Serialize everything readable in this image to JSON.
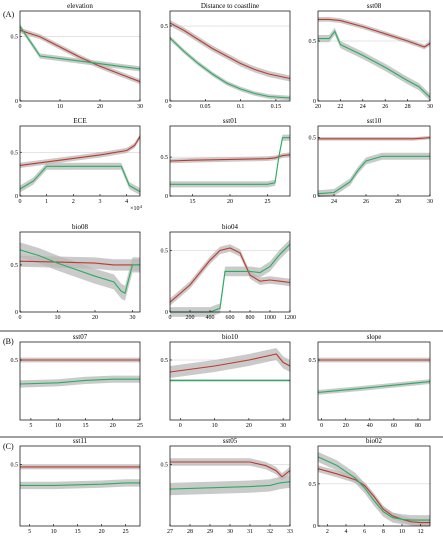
{
  "sections": [
    "(A)",
    "(B)",
    "(C)"
  ],
  "colors": {
    "red": "#c0392b",
    "green": "#27ae60",
    "band": "#b8b8b8"
  },
  "chart_data": [
    {
      "type": "line",
      "title": "elevation",
      "xlim": [
        0,
        30
      ],
      "ylim": [
        0,
        0.7
      ],
      "xticks": [
        0,
        10,
        20,
        30
      ],
      "yticks": [
        0,
        0.5
      ],
      "ytick_labels": [
        "0",
        "0.5"
      ],
      "exp": "",
      "ref": 0.5,
      "series": [
        {
          "color": "red",
          "x": [
            0,
            5,
            10,
            15,
            20,
            25,
            30
          ],
          "y": [
            0.55,
            0.5,
            0.42,
            0.34,
            0.27,
            0.21,
            0.15
          ],
          "band": 0.02
        },
        {
          "color": "green",
          "x": [
            0,
            5,
            10,
            15,
            20,
            25,
            30
          ],
          "y": [
            0.58,
            0.35,
            0.33,
            0.31,
            0.29,
            0.27,
            0.25
          ],
          "band": 0.02
        }
      ]
    },
    {
      "type": "line",
      "title": "Distance to coastline",
      "xlim": [
        0,
        0.17
      ],
      "ylim": [
        0,
        0.6
      ],
      "xticks": [
        0,
        0.05,
        0.1,
        0.15
      ],
      "yticks": [
        0,
        0.5
      ],
      "ytick_labels": [
        "0",
        "0.5"
      ],
      "exp": "",
      "ref": 0.5,
      "series": [
        {
          "color": "red",
          "x": [
            0,
            0.02,
            0.04,
            0.06,
            0.08,
            0.1,
            0.12,
            0.14,
            0.17
          ],
          "y": [
            0.52,
            0.47,
            0.41,
            0.35,
            0.3,
            0.25,
            0.21,
            0.18,
            0.15
          ],
          "band": 0.02
        },
        {
          "color": "green",
          "x": [
            0,
            0.02,
            0.04,
            0.06,
            0.08,
            0.1,
            0.12,
            0.14,
            0.17
          ],
          "y": [
            0.42,
            0.33,
            0.25,
            0.18,
            0.12,
            0.08,
            0.05,
            0.03,
            0.02
          ],
          "band": 0.015
        }
      ]
    },
    {
      "type": "line",
      "title": "sst08",
      "xlim": [
        20,
        30
      ],
      "ylim": [
        0,
        0.75
      ],
      "xticks": [
        20,
        22,
        24,
        26,
        28,
        30
      ],
      "yticks": [
        0,
        0.5
      ],
      "ytick_labels": [
        "0",
        "0.5"
      ],
      "exp": "",
      "ref": 0.5,
      "series": [
        {
          "color": "red",
          "x": [
            20,
            21,
            22,
            24,
            26,
            28,
            29.5,
            30
          ],
          "y": [
            0.68,
            0.68,
            0.67,
            0.62,
            0.56,
            0.5,
            0.45,
            0.48
          ],
          "band": 0.02
        },
        {
          "color": "green",
          "x": [
            20,
            21,
            21.5,
            22,
            24,
            26,
            28,
            29,
            30
          ],
          "y": [
            0.52,
            0.52,
            0.58,
            0.47,
            0.38,
            0.28,
            0.17,
            0.12,
            0.03
          ],
          "band": 0.03
        }
      ]
    },
    {
      "type": "line",
      "title": "ECE",
      "xlim": [
        0,
        45000
      ],
      "ylim": [
        0,
        0.8
      ],
      "xticks": [
        0,
        10000,
        20000,
        30000,
        40000
      ],
      "yticks": [
        0,
        0.5
      ],
      "ytick_labels": [
        "0",
        "0.5"
      ],
      "exp": "×10",
      "exp_power": "4",
      "ref": 0.5,
      "series": [
        {
          "color": "red",
          "x": [
            0,
            10000,
            20000,
            30000,
            40000,
            43000,
            45000
          ],
          "y": [
            0.35,
            0.39,
            0.43,
            0.47,
            0.52,
            0.58,
            0.68
          ],
          "band": 0.03
        },
        {
          "color": "green",
          "x": [
            0,
            5000,
            10000,
            20000,
            30000,
            38000,
            41000,
            45000
          ],
          "y": [
            0.08,
            0.17,
            0.34,
            0.34,
            0.34,
            0.34,
            0.12,
            0.05
          ],
          "band": 0.04
        }
      ]
    },
    {
      "type": "line",
      "title": "sst01",
      "xlim": [
        12,
        28
      ],
      "ylim": [
        0,
        0.9
      ],
      "xticks": [
        15,
        20,
        25
      ],
      "yticks": [
        0,
        0.5
      ],
      "ytick_labels": [
        "0",
        "0.5"
      ],
      "exp": "",
      "ref": 0.5,
      "series": [
        {
          "color": "red",
          "x": [
            12,
            15,
            20,
            25,
            26,
            27,
            28
          ],
          "y": [
            0.45,
            0.46,
            0.47,
            0.48,
            0.49,
            0.52,
            0.53
          ],
          "band": 0.03
        },
        {
          "color": "green",
          "x": [
            12,
            20,
            25,
            26,
            26.5,
            27,
            28
          ],
          "y": [
            0.15,
            0.15,
            0.15,
            0.17,
            0.5,
            0.75,
            0.75
          ],
          "band": 0.04
        }
      ]
    },
    {
      "type": "line",
      "title": "sst10",
      "xlim": [
        23,
        30
      ],
      "ylim": [
        0,
        0.6
      ],
      "xticks": [
        24,
        26,
        28,
        30
      ],
      "yticks": [
        0,
        0.5
      ],
      "ytick_labels": [
        "0",
        "0.5"
      ],
      "exp": "",
      "ref": 0.5,
      "series": [
        {
          "color": "red",
          "x": [
            23,
            25,
            27,
            29,
            30
          ],
          "y": [
            0.49,
            0.49,
            0.49,
            0.49,
            0.5
          ],
          "band": 0.015
        },
        {
          "color": "green",
          "x": [
            23,
            24,
            25,
            25.5,
            26,
            27,
            28,
            30
          ],
          "y": [
            0.02,
            0.03,
            0.12,
            0.22,
            0.3,
            0.34,
            0.34,
            0.34
          ],
          "band": 0.03
        }
      ]
    },
    {
      "type": "line",
      "title": "bio08",
      "xlim": [
        0,
        32
      ],
      "ylim": [
        0,
        0.85
      ],
      "xticks": [
        0,
        10,
        20,
        30
      ],
      "yticks": [
        0,
        0.5
      ],
      "ytick_labels": [
        "0",
        "0.5"
      ],
      "exp": "",
      "ref": 0.5,
      "series": [
        {
          "color": "red",
          "x": [
            0,
            10,
            20,
            25,
            28,
            30,
            32
          ],
          "y": [
            0.54,
            0.53,
            0.52,
            0.5,
            0.5,
            0.5,
            0.5
          ],
          "band": 0.06
        },
        {
          "color": "green",
          "x": [
            0,
            5,
            10,
            15,
            20,
            25,
            27,
            28,
            30,
            32
          ],
          "y": [
            0.66,
            0.6,
            0.52,
            0.45,
            0.38,
            0.32,
            0.22,
            0.2,
            0.5,
            0.5
          ],
          "band": 0.08
        }
      ]
    },
    {
      "type": "line",
      "title": "bio04",
      "xlim": [
        0,
        1200
      ],
      "ylim": [
        0,
        0.65
      ],
      "xticks": [
        0,
        200,
        400,
        600,
        800,
        1000,
        1200
      ],
      "yticks": [
        0,
        0.5
      ],
      "ytick_labels": [
        "0",
        "0.5"
      ],
      "exp": "",
      "ref": 0.5,
      "series": [
        {
          "color": "red",
          "x": [
            0,
            200,
            400,
            500,
            600,
            700,
            800,
            900,
            1000,
            1100,
            1200
          ],
          "y": [
            0.08,
            0.22,
            0.42,
            0.5,
            0.52,
            0.48,
            0.3,
            0.25,
            0.26,
            0.25,
            0.24
          ],
          "band": 0.03
        },
        {
          "color": "green",
          "x": [
            0,
            400,
            500,
            550,
            650,
            800,
            900,
            1000,
            1100,
            1200
          ],
          "y": [
            0.0,
            0.0,
            0.03,
            0.33,
            0.33,
            0.33,
            0.32,
            0.37,
            0.47,
            0.55
          ],
          "band": 0.04
        }
      ]
    },
    {
      "type": "line",
      "title": "sst07",
      "xlim": [
        3,
        25
      ],
      "ylim": [
        0,
        0.65
      ],
      "xticks": [
        5,
        10,
        15,
        20,
        25
      ],
      "yticks": [
        0.5
      ],
      "ytick_labels": [
        "0.5"
      ],
      "exp": "",
      "ref": 0.5,
      "series": [
        {
          "color": "red",
          "x": [
            3,
            10,
            20,
            25
          ],
          "y": [
            0.5,
            0.5,
            0.5,
            0.5
          ],
          "band": 0.02
        },
        {
          "color": "green",
          "x": [
            3,
            10,
            15,
            20,
            25
          ],
          "y": [
            0.3,
            0.31,
            0.33,
            0.34,
            0.34
          ],
          "band": 0.03
        }
      ]
    },
    {
      "type": "line",
      "title": "bio10",
      "xlim": [
        -3,
        32
      ],
      "ylim": [
        0,
        0.65
      ],
      "xticks": [
        0,
        10,
        20,
        30
      ],
      "yticks": [
        0.5
      ],
      "ytick_labels": [
        "0.5"
      ],
      "exp": "",
      "ref": 0.5,
      "series": [
        {
          "color": "red",
          "x": [
            -3,
            10,
            20,
            28,
            30,
            32
          ],
          "y": [
            0.4,
            0.45,
            0.5,
            0.55,
            0.48,
            0.45
          ],
          "band": 0.05
        },
        {
          "color": "green",
          "x": [
            -3,
            10,
            20,
            30,
            32
          ],
          "y": [
            0.33,
            0.33,
            0.33,
            0.33,
            0.33
          ],
          "band": 0.01
        }
      ]
    },
    {
      "type": "line",
      "title": "slope",
      "xlim": [
        -3,
        90
      ],
      "ylim": [
        0,
        0.65
      ],
      "xticks": [
        0,
        20,
        40,
        60,
        80
      ],
      "yticks": [
        0.5
      ],
      "ytick_labels": [
        "0.5"
      ],
      "exp": "",
      "ref": 0.5,
      "series": [
        {
          "color": "red",
          "x": [
            -3,
            30,
            60,
            90
          ],
          "y": [
            0.5,
            0.5,
            0.5,
            0.5
          ],
          "band": 0.02
        },
        {
          "color": "green",
          "x": [
            -3,
            30,
            60,
            90
          ],
          "y": [
            0.23,
            0.26,
            0.29,
            0.32
          ],
          "band": 0.02
        }
      ]
    },
    {
      "type": "line",
      "title": "sst11",
      "xlim": [
        3,
        28
      ],
      "ylim": [
        0,
        0.65
      ],
      "xticks": [
        5,
        10,
        15,
        20,
        25
      ],
      "yticks": [
        0.5
      ],
      "ytick_labels": [
        "0.5"
      ],
      "exp": "",
      "ref": 0.5,
      "series": [
        {
          "color": "red",
          "x": [
            3,
            10,
            20,
            28
          ],
          "y": [
            0.48,
            0.48,
            0.48,
            0.48
          ],
          "band": 0.02
        },
        {
          "color": "green",
          "x": [
            3,
            10,
            20,
            25,
            28
          ],
          "y": [
            0.33,
            0.33,
            0.34,
            0.35,
            0.35
          ],
          "band": 0.03
        }
      ]
    },
    {
      "type": "line",
      "title": "sst05",
      "xlim": [
        27,
        33
      ],
      "ylim": [
        0,
        0.65
      ],
      "xticks": [
        27,
        28,
        29,
        30,
        31,
        32,
        33
      ],
      "yticks": [
        0.5
      ],
      "ytick_labels": [
        "0.5"
      ],
      "exp": "",
      "ref": 0.5,
      "series": [
        {
          "color": "red",
          "x": [
            27,
            29,
            31,
            31.8,
            32.3,
            32.6,
            33
          ],
          "y": [
            0.52,
            0.52,
            0.52,
            0.49,
            0.45,
            0.4,
            0.45
          ],
          "band": 0.03
        },
        {
          "color": "green",
          "x": [
            27,
            29,
            31,
            32,
            32.5,
            33
          ],
          "y": [
            0.3,
            0.31,
            0.32,
            0.33,
            0.35,
            0.36
          ],
          "band": 0.05
        }
      ]
    },
    {
      "type": "line",
      "title": "bio02",
      "xlim": [
        1,
        13
      ],
      "ylim": [
        0,
        0.95
      ],
      "xticks": [
        2,
        4,
        6,
        8,
        10,
        12
      ],
      "yticks": [
        0,
        0.5
      ],
      "ytick_labels": [
        "0",
        "0.5"
      ],
      "exp": "",
      "ref": 0.5,
      "series": [
        {
          "color": "red",
          "x": [
            1,
            3,
            5,
            6,
            7,
            8,
            9,
            10,
            11,
            12,
            13
          ],
          "y": [
            0.68,
            0.62,
            0.55,
            0.48,
            0.35,
            0.2,
            0.12,
            0.08,
            0.05,
            0.04,
            0.04
          ],
          "band": 0.04
        },
        {
          "color": "green",
          "x": [
            1,
            3,
            5,
            6,
            7,
            8,
            9,
            10,
            11,
            12,
            13
          ],
          "y": [
            0.82,
            0.72,
            0.57,
            0.45,
            0.3,
            0.17,
            0.1,
            0.08,
            0.07,
            0.07,
            0.07
          ],
          "band": 0.06
        }
      ]
    }
  ]
}
